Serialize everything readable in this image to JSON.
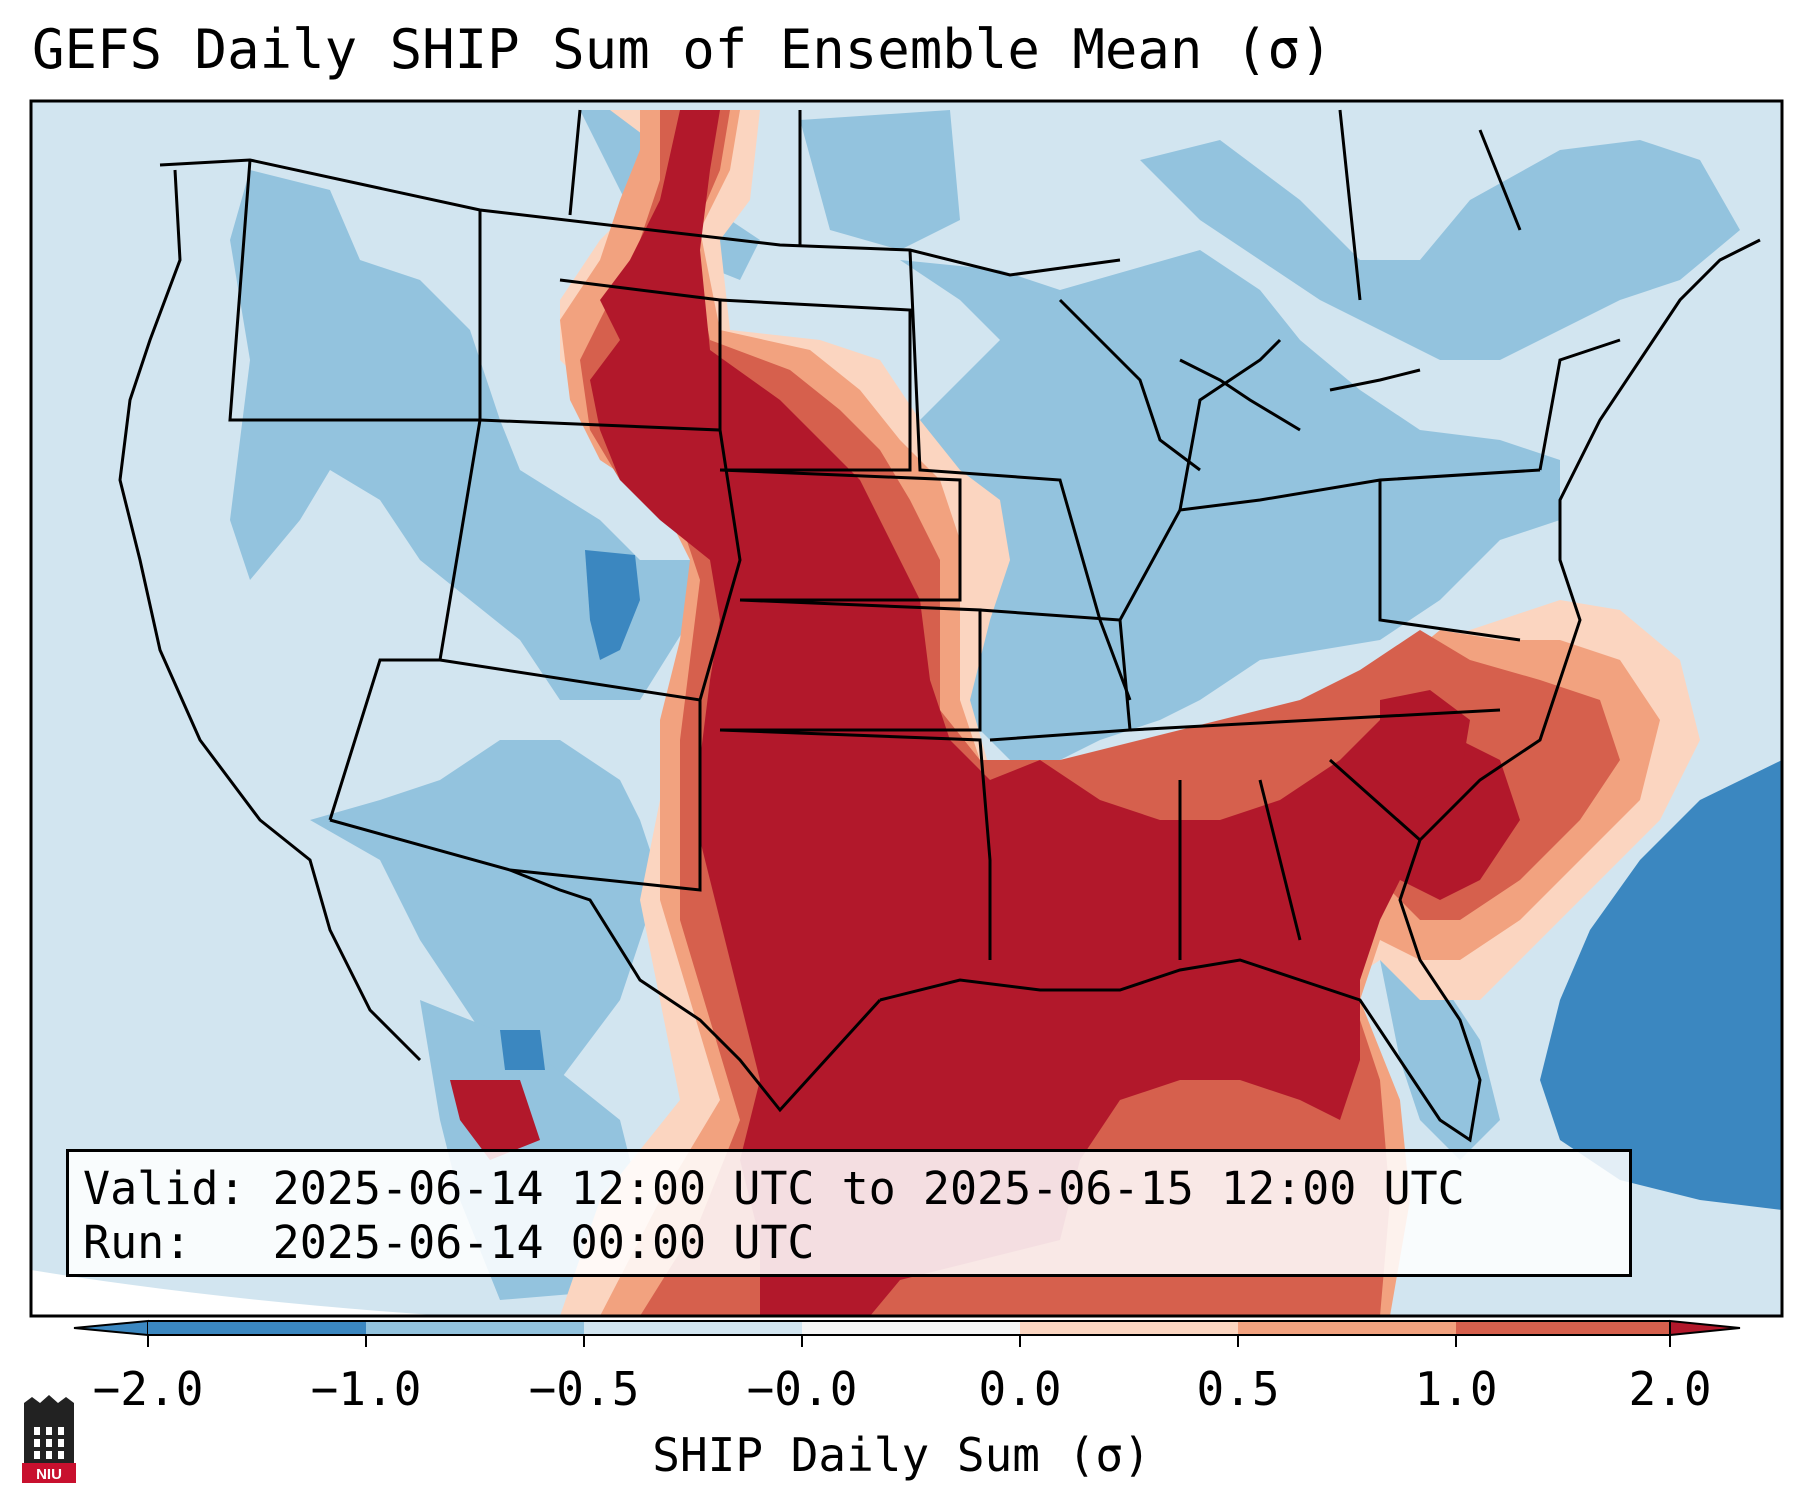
{
  "title": "GEFS Daily SHIP Sum of Ensemble Mean (σ)",
  "info": {
    "valid_label": "Valid:",
    "valid_value": "2025-06-14 12:00 UTC to 2025-06-15 12:00 UTC",
    "run_label": "Run:",
    "run_value": "2025-06-14 00:00 UTC"
  },
  "colorbar": {
    "label": "SHIP Daily Sum (σ)",
    "ticks": [
      "−2.0",
      "−1.0",
      "−0.5",
      "−0.0",
      "0.0",
      "0.5",
      "1.0",
      "2.0"
    ],
    "colors": [
      "#3b87c0",
      "#93c3de",
      "#d2e5f0",
      "#f5f5f5",
      "#fbd5c0",
      "#f2a27f",
      "#d6604d",
      "#b2182b"
    ],
    "extend": "both"
  },
  "map": {
    "projection": "Lambert conformal, CONUS",
    "ocean_color": "#d2e5f0",
    "outside_color": "#ffffff",
    "region_colors": {
      "strong_positive": "#b2182b",
      "positive": "#d6604d",
      "weak_positive": "#f2a27f",
      "slight_positive": "#fbd5c0",
      "neutral": "#f5f5f5",
      "slight_negative": "#d2e5f0",
      "negative": "#93c3de",
      "strong_negative": "#3b87c0"
    }
  },
  "logo": {
    "text": "NIU",
    "color": "#c8102e"
  }
}
